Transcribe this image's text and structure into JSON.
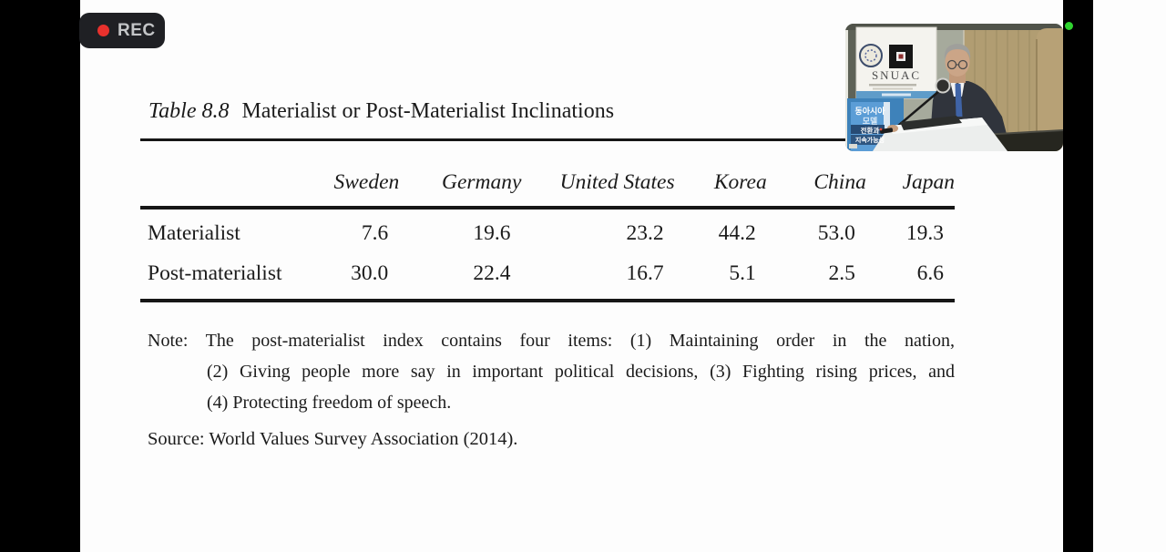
{
  "recorder": {
    "rec_label": "REC"
  },
  "slide": {
    "title_prefix": "Table 8.8",
    "title": "Materialist or Post-Materialist Inclinations",
    "note_line1": "Note: The post-materialist index contains four items: (1) Maintaining order in the nation,",
    "note_line2": "(2) Giving people more say in important political decisions, (3) Fighting rising prices, and",
    "note_line3": "(4) Protecting freedom of speech.",
    "source": "Source: World Values Survey Association (2014)."
  },
  "chart_data": {
    "type": "table",
    "title": "Table 8.8 Materialist or Post-Materialist Inclinations",
    "columns": [
      "Sweden",
      "Germany",
      "United States",
      "Korea",
      "China",
      "Japan"
    ],
    "rows": [
      {
        "label": "Materialist",
        "values": [
          "7.6",
          "19.6",
          "23.2",
          "44.2",
          "53.0",
          "19.3"
        ]
      },
      {
        "label": "Post-materialist",
        "values": [
          "30.0",
          "22.4",
          "16.7",
          "5.1",
          "2.5",
          "6.6"
        ]
      }
    ],
    "note": "The post-materialist index contains four items: (1) Maintaining order in the nation, (2) Giving people more say in important political decisions, (3) Fighting rising prices, and (4) Protecting freedom of speech.",
    "source": "World Values Survey Association (2014)"
  },
  "video_overlay": {
    "banner_title": "SNUAC",
    "book_line1": "동아시아",
    "book_line2": "모델",
    "book_line3": "전환과",
    "book_line4": "지속가능성"
  },
  "colors": {
    "record_red": "#e8312d",
    "live_green": "#2fd32f",
    "nav_icon_gray": "#8a8f93",
    "slide_ink": "#1b1b1b"
  }
}
